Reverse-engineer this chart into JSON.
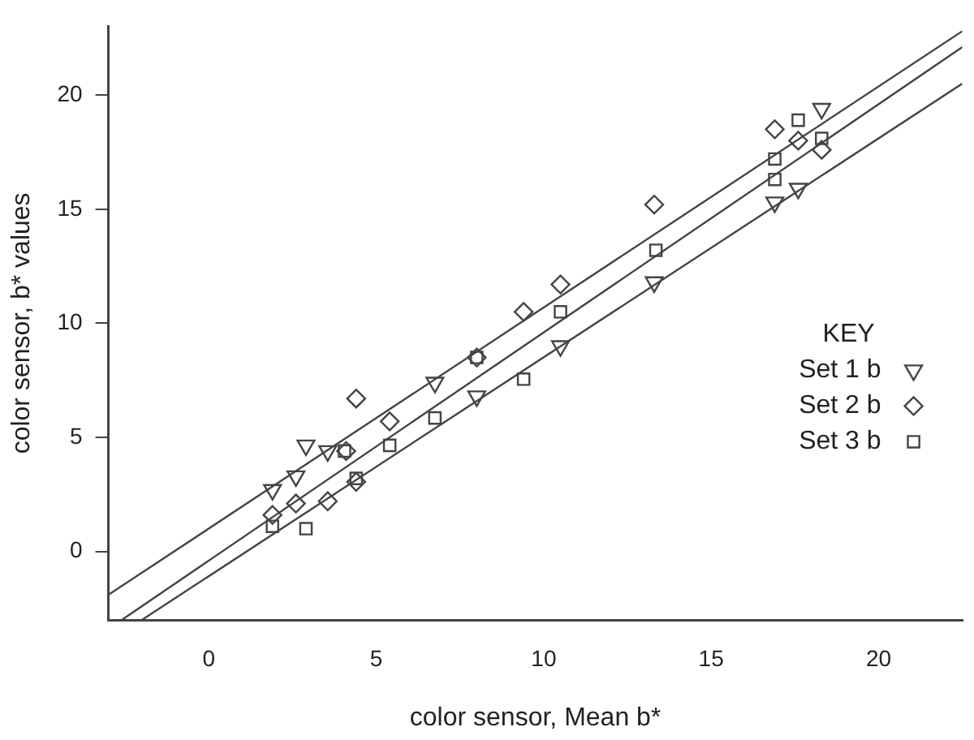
{
  "chart_data": {
    "type": "scatter",
    "xlabel": "color sensor, Mean b*",
    "ylabel": "color sensor, b* values",
    "legend_title": "KEY",
    "legend": "right",
    "grid": false,
    "xlim": [
      -3,
      22.5
    ],
    "ylim": [
      -3,
      23
    ],
    "xticks": [
      0,
      5,
      10,
      15,
      20
    ],
    "yticks": [
      0,
      5,
      10,
      15,
      20
    ],
    "series": [
      {
        "name": "Set 1 b",
        "color": "#444444",
        "marker": "triangle",
        "x": [
          1.9,
          2.9,
          2.6,
          3.55,
          6.75,
          8.0,
          10.5,
          13.3,
          16.9,
          17.6,
          18.3
        ],
        "values": [
          2.7,
          4.65,
          3.3,
          4.4,
          7.4,
          6.8,
          9.0,
          11.8,
          15.3,
          15.9,
          19.4
        ]
      },
      {
        "name": "Set 2 b",
        "color": "#444444",
        "marker": "diamond",
        "x": [
          1.9,
          2.6,
          3.55,
          4.1,
          4.4,
          4.4,
          5.4,
          8.0,
          9.4,
          10.5,
          13.3,
          16.9,
          17.6,
          18.3
        ],
        "values": [
          1.6,
          2.1,
          2.2,
          4.4,
          3.05,
          6.7,
          5.7,
          8.5,
          10.5,
          11.7,
          15.2,
          18.5,
          18.0,
          17.6
        ]
      },
      {
        "name": "Set 3 b",
        "color": "#444444",
        "marker": "square",
        "x": [
          1.9,
          2.9,
          4.05,
          4.4,
          5.4,
          6.75,
          8.0,
          9.4,
          10.5,
          13.35,
          16.9,
          16.9,
          17.6,
          18.3
        ],
        "values": [
          1.1,
          1.0,
          4.4,
          3.2,
          4.65,
          5.85,
          8.5,
          7.55,
          10.5,
          13.2,
          16.3,
          17.2,
          18.9,
          18.1
        ]
      },
      {
        "type": "line",
        "color": "#444444",
        "marker": "none",
        "x": [
          -3,
          22.5
        ],
        "values": [
          -1.9,
          22.8
        ]
      },
      {
        "type": "line",
        "color": "#444444",
        "marker": "none",
        "x": [
          -2.6,
          22.5
        ],
        "values": [
          -3,
          22.1
        ]
      },
      {
        "type": "line",
        "color": "#444444",
        "marker": "none",
        "x": [
          -2.0,
          22.5
        ],
        "values": [
          -3,
          20.5
        ]
      }
    ]
  }
}
